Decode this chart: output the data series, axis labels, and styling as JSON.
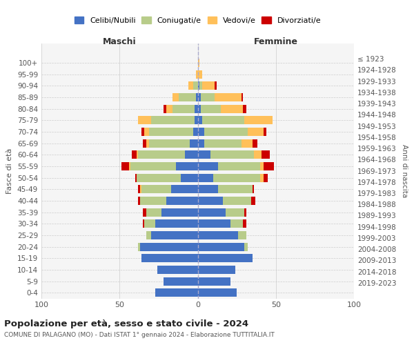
{
  "age_groups": [
    "0-4",
    "5-9",
    "10-14",
    "15-19",
    "20-24",
    "25-29",
    "30-34",
    "35-39",
    "40-44",
    "45-49",
    "50-54",
    "55-59",
    "60-64",
    "65-69",
    "70-74",
    "75-79",
    "80-84",
    "85-89",
    "90-94",
    "95-99",
    "100+"
  ],
  "birth_years": [
    "2019-2023",
    "2014-2018",
    "2009-2013",
    "2004-2008",
    "1999-2003",
    "1994-1998",
    "1989-1993",
    "1984-1988",
    "1979-1983",
    "1974-1978",
    "1969-1973",
    "1964-1968",
    "1959-1963",
    "1954-1958",
    "1949-1953",
    "1944-1948",
    "1939-1943",
    "1934-1938",
    "1929-1933",
    "1924-1928",
    "≤ 1923"
  ],
  "males": {
    "celibi": [
      27,
      22,
      26,
      36,
      37,
      30,
      27,
      23,
      20,
      17,
      11,
      14,
      8,
      5,
      3,
      2,
      2,
      1,
      0,
      0,
      0
    ],
    "coniugati": [
      0,
      0,
      0,
      0,
      1,
      3,
      7,
      10,
      17,
      19,
      28,
      29,
      30,
      26,
      28,
      28,
      14,
      11,
      3,
      0,
      0
    ],
    "vedovi": [
      0,
      0,
      0,
      0,
      0,
      0,
      0,
      0,
      0,
      1,
      0,
      1,
      1,
      2,
      3,
      8,
      4,
      4,
      3,
      1,
      0
    ],
    "divorziati": [
      0,
      0,
      0,
      0,
      0,
      0,
      1,
      2,
      1,
      1,
      1,
      5,
      3,
      2,
      2,
      0,
      2,
      0,
      0,
      0,
      0
    ]
  },
  "females": {
    "nubili": [
      25,
      21,
      24,
      35,
      30,
      26,
      21,
      18,
      16,
      13,
      10,
      13,
      8,
      4,
      4,
      3,
      2,
      2,
      1,
      0,
      0
    ],
    "coniugate": [
      0,
      0,
      0,
      0,
      2,
      5,
      8,
      12,
      18,
      22,
      30,
      27,
      28,
      24,
      28,
      27,
      13,
      9,
      2,
      0,
      0
    ],
    "vedove": [
      0,
      0,
      0,
      0,
      0,
      0,
      0,
      0,
      0,
      0,
      2,
      2,
      5,
      7,
      10,
      18,
      14,
      17,
      8,
      3,
      1
    ],
    "divorziate": [
      0,
      0,
      0,
      0,
      0,
      0,
      2,
      1,
      3,
      1,
      3,
      7,
      5,
      3,
      2,
      0,
      2,
      1,
      1,
      0,
      0
    ]
  },
  "colors": {
    "celibi": "#4472c4",
    "coniugati": "#b8cc8a",
    "vedovi": "#ffc05a",
    "divorziati": "#cc0000"
  },
  "title": "Popolazione per età, sesso e stato civile - 2024",
  "subtitle": "COMUNE DI PALAGANO (MO) - Dati ISTAT 1° gennaio 2024 - Elaborazione TUTTITALIA.IT",
  "xlabel_left": "Maschi",
  "xlabel_right": "Femmine",
  "ylabel_left": "Fasce di età",
  "ylabel_right": "Anni di nascita",
  "xlim": 100,
  "legend_labels": [
    "Celibi/Nubili",
    "Coniugati/e",
    "Vedovi/e",
    "Divorziati/e"
  ]
}
